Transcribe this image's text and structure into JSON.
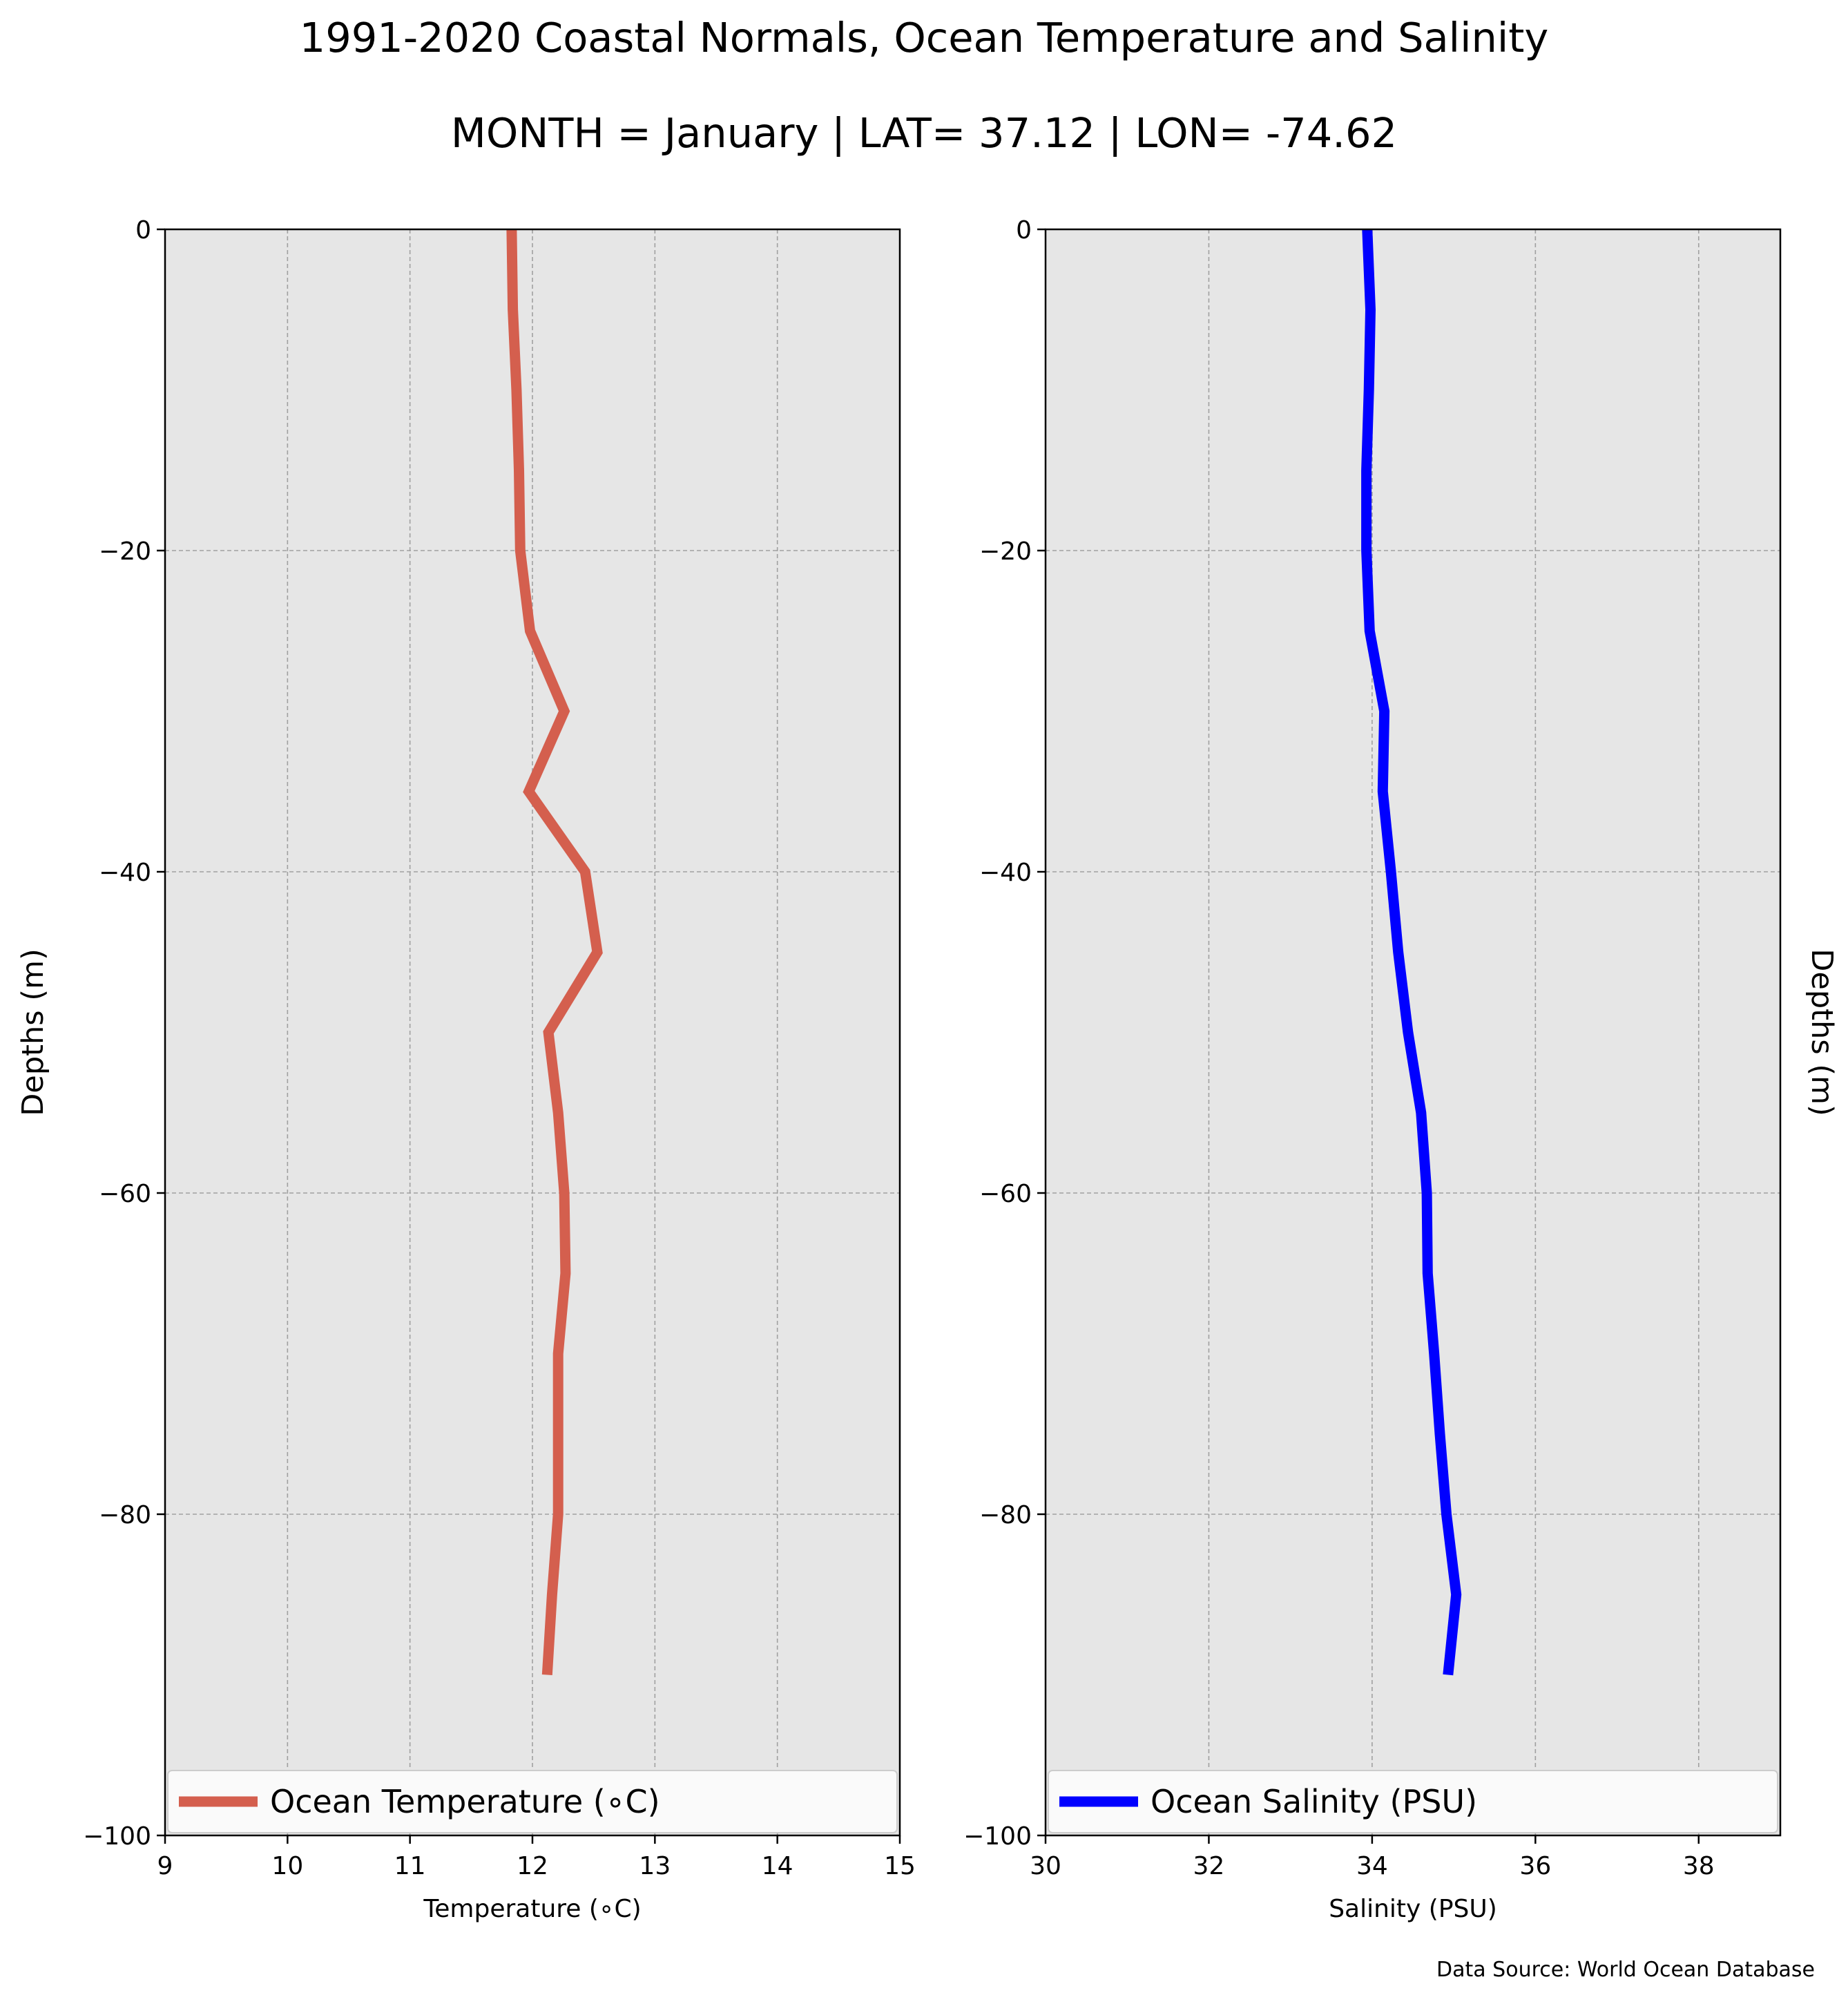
{
  "title": "1991-2020 Coastal Normals, Ocean Temperature and Salinity",
  "subtitle": "MONTH = January | LAT= 37.12 | LON= -74.62",
  "source": "Data Source: World Ocean Database",
  "colors": {
    "plot_bg": "#e6e6e6",
    "temperature": "#d45f4e",
    "salinity": "#0000ff",
    "grid": "#a0a0a0"
  },
  "chart_data": [
    {
      "type": "line",
      "xlabel": "Temperature ($^\\circ$C)",
      "xlabel_display": "Temperature (∘C)",
      "ylabel": "Depths (m)",
      "xlim": [
        9,
        15
      ],
      "ylim": [
        -100,
        0
      ],
      "xticks": [
        9,
        10,
        11,
        12,
        13,
        14,
        15
      ],
      "yticks": [
        0,
        -20,
        -40,
        -60,
        -80,
        -100
      ],
      "ytick_labels": [
        "0",
        "−20",
        "−40",
        "−60",
        "−80",
        "−100"
      ],
      "grid": true,
      "legend_position": "bottom",
      "series": [
        {
          "name": "Ocean Temperature (∘C)",
          "color": "#d45f4e",
          "depth": [
            0,
            -5,
            -10,
            -15,
            -20,
            -25,
            -30,
            -35,
            -40,
            -45,
            -50,
            -55,
            -60,
            -65,
            -70,
            -75,
            -80,
            -85,
            -90
          ],
          "values": [
            11.83,
            11.84,
            11.87,
            11.89,
            11.9,
            11.98,
            12.26,
            11.97,
            12.43,
            12.53,
            12.13,
            12.21,
            12.26,
            12.27,
            12.21,
            12.21,
            12.21,
            12.16,
            12.12
          ]
        }
      ]
    },
    {
      "type": "line",
      "xlabel": "Salinity (PSU)",
      "ylabel": "Depths (m)",
      "xlim": [
        30,
        39
      ],
      "ylim": [
        -100,
        0
      ],
      "xticks": [
        30,
        32,
        34,
        36,
        38
      ],
      "yticks": [
        0,
        -20,
        -40,
        -60,
        -80,
        -100
      ],
      "ytick_labels": [
        "0",
        "−20",
        "−40",
        "−60",
        "−80",
        "−100"
      ],
      "grid": true,
      "legend_position": "bottom",
      "series": [
        {
          "name": "Ocean Salinity (PSU)",
          "color": "#0000ff",
          "depth": [
            0,
            -5,
            -10,
            -15,
            -20,
            -25,
            -30,
            -35,
            -40,
            -45,
            -50,
            -55,
            -60,
            -65,
            -70,
            -75,
            -80,
            -85,
            -90
          ],
          "values": [
            33.94,
            33.98,
            33.96,
            33.93,
            33.93,
            33.97,
            34.15,
            34.13,
            34.23,
            34.32,
            34.44,
            34.6,
            34.67,
            34.68,
            34.76,
            34.83,
            34.91,
            35.03,
            34.93
          ]
        }
      ]
    }
  ]
}
